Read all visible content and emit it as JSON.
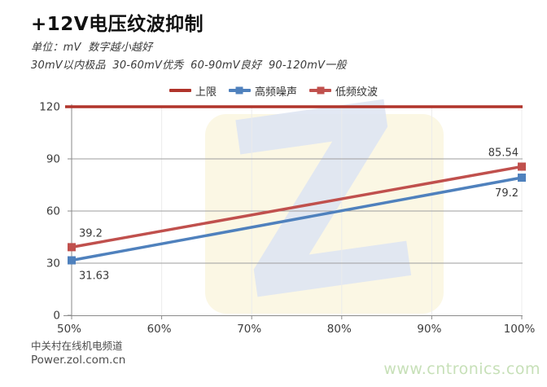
{
  "title": "+12V电压纹波抑制",
  "subtitle_units": "单位：mV  数字越小越好",
  "subtitle_grading": "30mV以内极品  30-60mV优秀  60-90mV良好  90-120mV一般",
  "footer": {
    "channel": "中关村在线机电频道",
    "site": "Power.zol.com.cn",
    "watermark_url": "www.cntronics.com"
  },
  "colors": {
    "upper_limit": "#b0342b",
    "high_freq_noise": "#4f81bd",
    "low_freq_ripple": "#c0504d",
    "grid": "#9e9e9e",
    "vgrid": "#ececec",
    "axis": "#8a8a8a",
    "tick_label": "#3d3d3d",
    "data_label": "#3a3a3a",
    "watermark_square": "#fbf7e4",
    "watermark_z": "#dfe6f3",
    "watermark_url_green": "#c7e0b8"
  },
  "chart_data": {
    "type": "line",
    "title": "+12V电压纹波抑制",
    "unit": "mV",
    "categories": [
      "50%",
      "60%",
      "70%",
      "80%",
      "90%",
      "100%"
    ],
    "ylim": [
      0,
      120
    ],
    "y_ticks": [
      0,
      30,
      60,
      90,
      120
    ],
    "grid": true,
    "legend_position": "top",
    "series": [
      {
        "name": "上限",
        "color": "#b0342b",
        "marker": "none",
        "constant": 120
      },
      {
        "name": "高频噪声",
        "color": "#4f81bd",
        "marker": "square",
        "points": [
          {
            "x": "50%",
            "value": 31.63,
            "label": "31.63",
            "label_pos": "below"
          },
          {
            "x": "100%",
            "value": 79.2,
            "label": "79.2",
            "label_pos": "below"
          }
        ]
      },
      {
        "name": "低频纹波",
        "color": "#c0504d",
        "marker": "square",
        "points": [
          {
            "x": "50%",
            "value": 39.2,
            "label": "39.2",
            "label_pos": "above"
          },
          {
            "x": "100%",
            "value": 85.54,
            "label": "85.54",
            "label_pos": "above"
          }
        ]
      }
    ]
  }
}
